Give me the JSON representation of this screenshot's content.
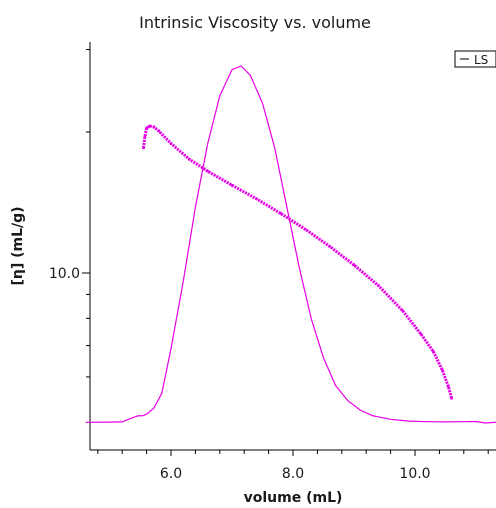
{
  "chart_data": {
    "type": "line",
    "title": "Intrinsic Viscosity vs. volume",
    "xlabel": "volume (mL)",
    "ylabel": "[η] (mL/g)",
    "xlim": [
      4.6,
      11.4
    ],
    "x_ticks": [
      {
        "value": 6.0,
        "label": "6.0"
      },
      {
        "value": 8.0,
        "label": "8.0"
      },
      {
        "value": 10.0,
        "label": "10.0"
      }
    ],
    "y_scale": "log",
    "y_ticks": [
      {
        "value": 10.0,
        "label": "10.0"
      }
    ],
    "grid": false,
    "legend": {
      "position": "top-right",
      "entries": [
        "LS"
      ]
    },
    "colors": {
      "series": "#e600e6",
      "axis": "#000000"
    },
    "series": [
      {
        "name": "LS",
        "kind": "detector-trace",
        "x": [
          4.6,
          5.0,
          5.2,
          5.32,
          5.45,
          5.55,
          5.62,
          5.72,
          5.85,
          6.0,
          6.2,
          6.4,
          6.6,
          6.8,
          7.0,
          7.15,
          7.3,
          7.5,
          7.7,
          7.9,
          8.1,
          8.3,
          8.5,
          8.7,
          8.9,
          9.1,
          9.3,
          9.6,
          9.9,
          10.2,
          10.5,
          10.8,
          11.0,
          11.15,
          11.3,
          11.4
        ],
        "y": [
          2,
          2.3,
          3,
          11,
          19,
          20,
          26,
          40,
          80,
          200,
          380,
          580,
          750,
          880,
          950,
          960,
          935,
          860,
          740,
          580,
          420,
          280,
          175,
          100,
          60,
          35,
          20,
          10,
          5,
          3.5,
          3,
          3.5,
          4,
          0,
          1.5,
          2.5
        ]
      },
      {
        "name": "",
        "kind": "intrinsic-viscosity",
        "x": [
          5.55,
          5.57,
          5.6,
          5.65,
          5.72,
          5.8,
          6.0,
          6.3,
          6.6,
          7.0,
          7.4,
          7.8,
          8.2,
          8.6,
          9.0,
          9.4,
          9.8,
          10.1,
          10.3,
          10.45,
          10.55,
          10.6
        ],
        "y": [
          18.5,
          19.5,
          20.4,
          20.6,
          20.5,
          20.1,
          18.9,
          17.5,
          16.5,
          15.4,
          14.4,
          13.4,
          12.4,
          11.4,
          10.4,
          9.4,
          8.3,
          7.4,
          6.8,
          6.2,
          5.7,
          5.4
        ]
      }
    ]
  }
}
